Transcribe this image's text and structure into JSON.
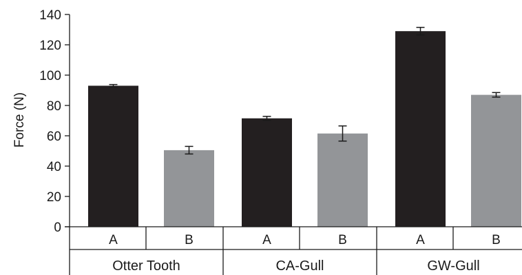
{
  "chart_data": {
    "type": "bar",
    "ylabel": "Force (N)",
    "ylim": [
      0,
      140
    ],
    "yticks": [
      0,
      20,
      40,
      60,
      80,
      100,
      120,
      140
    ],
    "grid": false,
    "groups": [
      {
        "label": "Otter Tooth",
        "bars": [
          {
            "category": "A",
            "value": 93,
            "error": 0.8,
            "color": "#231f20"
          },
          {
            "category": "B",
            "value": 50.5,
            "error": 2.5,
            "color": "#939598"
          }
        ]
      },
      {
        "label": "CA-Gull",
        "bars": [
          {
            "category": "A",
            "value": 71.5,
            "error": 1.3,
            "color": "#231f20"
          },
          {
            "category": "B",
            "value": 61.5,
            "error": 5,
            "color": "#939598"
          }
        ]
      },
      {
        "label": "GW-Gull",
        "bars": [
          {
            "category": "A",
            "value": 129,
            "error": 2.5,
            "color": "#231f20"
          },
          {
            "category": "B",
            "value": 87,
            "error": 1.5,
            "color": "#939598"
          }
        ]
      }
    ]
  }
}
